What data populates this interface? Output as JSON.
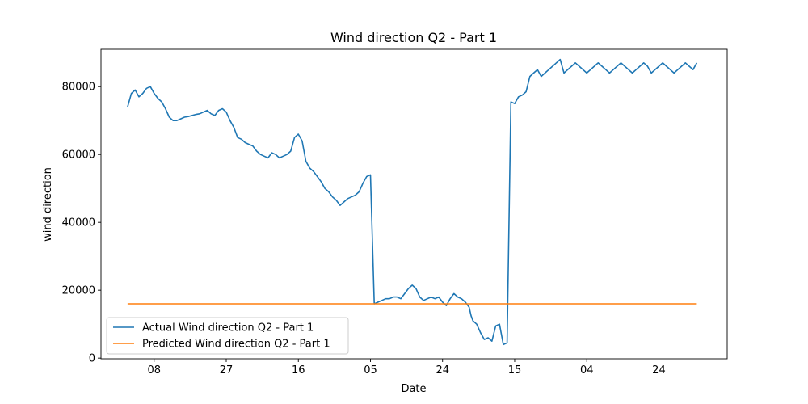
{
  "chart_data": {
    "type": "line",
    "title": "Wind direction Q2 - Part 1",
    "xlabel": "Date",
    "ylabel": "wind direction",
    "x_ticks": [
      "08",
      "27",
      "16",
      "05",
      "24",
      "15",
      "04",
      "24"
    ],
    "x_tick_index": [
      7,
      26,
      45,
      64,
      83,
      102,
      121,
      140
    ],
    "y_ticks": [
      0,
      20000,
      40000,
      60000,
      80000
    ],
    "y_tick_labels": [
      "0",
      "20000",
      "40000",
      "60000",
      "80000"
    ],
    "xlim": [
      -7,
      158
    ],
    "ylim": [
      -200,
      91000
    ],
    "grid": false,
    "legend_position": "lower-left",
    "series": [
      {
        "name": "Actual Wind direction Q2 - Part 1",
        "color": "#1f77b4",
        "x": [
          0,
          1,
          2,
          3,
          4,
          5,
          6,
          7,
          8,
          9,
          10,
          11,
          12,
          13,
          14,
          15,
          16,
          17,
          18,
          19,
          20,
          21,
          22,
          23,
          24,
          25,
          26,
          27,
          28,
          29,
          30,
          31,
          32,
          33,
          34,
          35,
          36,
          37,
          38,
          39,
          40,
          41,
          42,
          43,
          44,
          45,
          46,
          47,
          48,
          49,
          50,
          51,
          52,
          53,
          54,
          55,
          56,
          57,
          58,
          59,
          60,
          61,
          62,
          63,
          64,
          65,
          66,
          67,
          68,
          69,
          70,
          71,
          72,
          73,
          74,
          75,
          76,
          77,
          78,
          79,
          80,
          81,
          82,
          83,
          84,
          85,
          86,
          87,
          88,
          89,
          90,
          90.5,
          91,
          92,
          93,
          94,
          95,
          96,
          97,
          98,
          99,
          100,
          101,
          102,
          103,
          104,
          105,
          106,
          107,
          108,
          109,
          110,
          111,
          112,
          113,
          114,
          115,
          116,
          117,
          118,
          119,
          120,
          121,
          122,
          123,
          124,
          125,
          126,
          127,
          128,
          129,
          130,
          131,
          132,
          133,
          134,
          135,
          136,
          137,
          137.5,
          138,
          139,
          140,
          141,
          142,
          143,
          144,
          145,
          146,
          147,
          148,
          149,
          150
        ],
        "y": [
          74000,
          78000,
          79000,
          77000,
          78000,
          79500,
          80000,
          78000,
          76500,
          75500,
          73500,
          71000,
          70000,
          70000,
          70500,
          71000,
          71200,
          71500,
          71800,
          72000,
          72500,
          73000,
          72000,
          71500,
          73000,
          73500,
          72500,
          70000,
          68000,
          65000,
          64500,
          63500,
          63000,
          62500,
          61000,
          60000,
          59500,
          59000,
          60500,
          60000,
          59000,
          59500,
          60000,
          61000,
          65000,
          66000,
          64000,
          58000,
          56000,
          55000,
          53500,
          52000,
          50000,
          49000,
          47500,
          46500,
          45000,
          46000,
          47000,
          47500,
          48000,
          49000,
          51500,
          53500,
          54000,
          16000,
          16500,
          17000,
          17500,
          17500,
          18000,
          18000,
          17500,
          19000,
          20500,
          21500,
          20500,
          18000,
          17000,
          17500,
          18000,
          17500,
          18000,
          16500,
          15500,
          17500,
          19000,
          18000,
          17500,
          16500,
          15000,
          12500,
          11000,
          10000,
          7500,
          5500,
          6000,
          5000,
          9500,
          10000,
          4000,
          4500,
          75500,
          75000,
          77000,
          77500,
          78500,
          83000,
          84000,
          85000,
          83000,
          84000,
          85000,
          86000,
          87000,
          88000,
          84000,
          85000,
          86000,
          87000,
          86000,
          85000,
          84000,
          85000,
          86000,
          87000,
          86000,
          85000,
          84000,
          85000,
          86000,
          87000,
          86000,
          85000,
          84000,
          85000,
          86000,
          87000,
          86000,
          85000,
          84000,
          85000,
          86000,
          87000,
          86000,
          85000,
          84000,
          85000,
          86000,
          87000,
          86000,
          85000,
          87000
        ]
      },
      {
        "name": "Predicted Wind direction Q2 - Part 1",
        "color": "#ff7f0e",
        "x": [
          0,
          150
        ],
        "y": [
          16000,
          16000
        ]
      }
    ]
  }
}
